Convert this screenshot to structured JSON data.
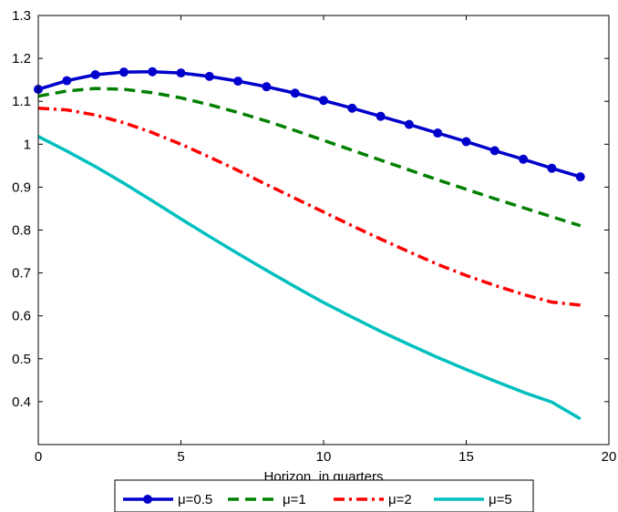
{
  "chart_data": {
    "type": "line",
    "title": "",
    "xlabel": "Horizon, in quarters",
    "ylabel": "",
    "xlim": [
      0,
      20
    ],
    "ylim": [
      0.3,
      1.3
    ],
    "xticks": [
      "0",
      "5",
      "10",
      "15",
      "20"
    ],
    "yticks": [
      "0.4",
      "0.5",
      "0.6",
      "0.7",
      "0.8",
      "0.9",
      "1",
      "1.1",
      "1.2",
      "1.3"
    ],
    "grid": false,
    "legend_position": "bottom",
    "x": [
      0,
      1,
      2,
      3,
      4,
      5,
      6,
      7,
      8,
      9,
      10,
      11,
      12,
      13,
      14,
      15,
      16,
      17,
      18,
      19
    ],
    "series": [
      {
        "name": "μ=0.5",
        "color": "#0000cc",
        "style": "solid-markers",
        "values": [
          1.128,
          1.148,
          1.162,
          1.168,
          1.169,
          1.166,
          1.158,
          1.147,
          1.134,
          1.119,
          1.102,
          1.084,
          1.065,
          1.046,
          1.026,
          1.006,
          0.985,
          0.965,
          0.944,
          0.924
        ]
      },
      {
        "name": "μ=1",
        "color": "#008000",
        "style": "dashed",
        "values": [
          1.112,
          1.124,
          1.13,
          1.128,
          1.12,
          1.108,
          1.092,
          1.074,
          1.054,
          1.032,
          1.009,
          0.986,
          0.963,
          0.94,
          0.917,
          0.895,
          0.873,
          0.852,
          0.831,
          0.81
        ]
      },
      {
        "name": "μ=2",
        "color": "#ff0000",
        "style": "dashdot",
        "values": [
          1.084,
          1.08,
          1.068,
          1.05,
          1.027,
          1.0,
          0.97,
          0.939,
          0.906,
          0.874,
          0.842,
          0.81,
          0.779,
          0.749,
          0.72,
          0.694,
          0.671,
          0.65,
          0.632,
          0.625
        ]
      },
      {
        "name": "μ=5",
        "color": "#00bfbf",
        "style": "solid",
        "values": [
          1.018,
          0.984,
          0.948,
          0.909,
          0.868,
          0.826,
          0.785,
          0.745,
          0.706,
          0.668,
          0.631,
          0.597,
          0.564,
          0.533,
          0.503,
          0.475,
          0.448,
          0.422,
          0.399,
          0.36
        ]
      }
    ]
  }
}
